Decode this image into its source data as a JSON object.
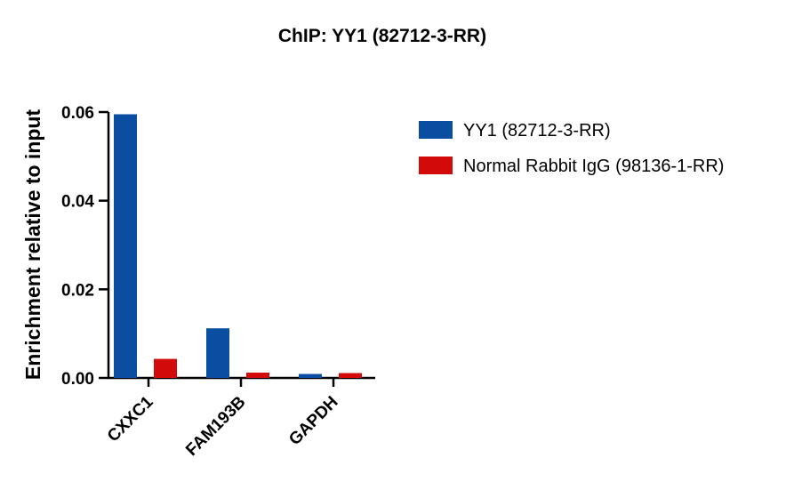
{
  "chart_data": {
    "type": "bar",
    "title": "ChIP: YY1 (82712-3-RR)",
    "xlabel": "",
    "ylabel": "Enrichment relative to input",
    "categories": [
      "CXXC1",
      "FAM193B",
      "GAPDH"
    ],
    "series": [
      {
        "name": "YY1 (82712-3-RR)",
        "color": "#0a4ea1",
        "values": [
          0.0595,
          0.0112,
          0.0009
        ]
      },
      {
        "name": "Normal Rabbit IgG (98136-1-RR)",
        "color": "#d20a0a",
        "values": [
          0.0043,
          0.0012,
          0.0011
        ]
      }
    ],
    "ylim": [
      0,
      0.06
    ],
    "yticks": [
      "0.00",
      "0.02",
      "0.04",
      "0.06"
    ],
    "grid": false,
    "legend_position": "right"
  }
}
